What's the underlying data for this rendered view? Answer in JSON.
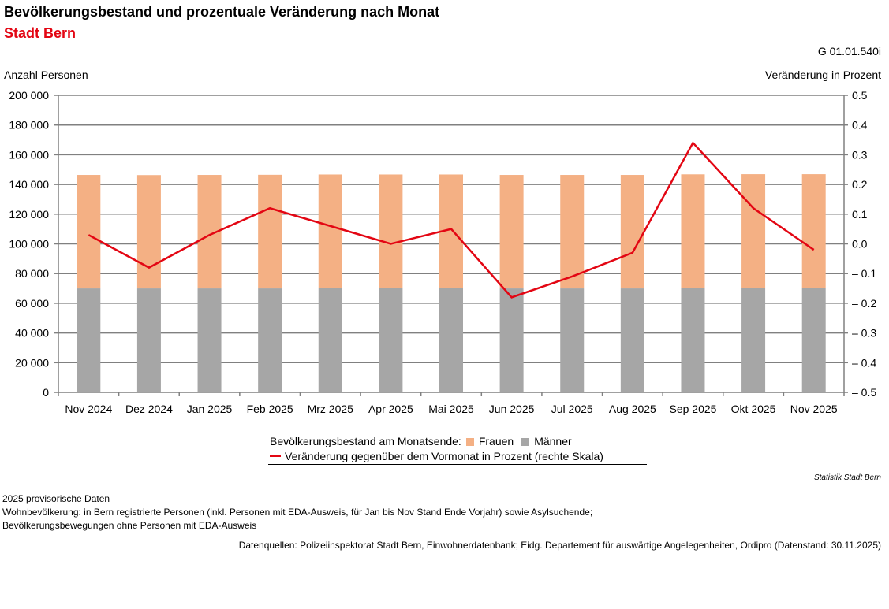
{
  "header": {
    "title": "Bevölkerungsbestand und prozentuale Veränderung nach Monat",
    "subtitle": "Stadt Bern",
    "code": "G 01.01.540i"
  },
  "chart_data": {
    "type": "bar",
    "title": "Bevölkerungsbestand und prozentuale Veränderung nach Monat",
    "ylabel": "Anzahl Personen",
    "y2label": "Veränderung in Prozent",
    "ylim": [
      0,
      200000
    ],
    "y2lim": [
      -0.5,
      0.5
    ],
    "yticks": [
      "0",
      "20 000",
      "40 000",
      "60 000",
      "80 000",
      "100 000",
      "120 000",
      "140 000",
      "160 000",
      "180 000",
      "200 000"
    ],
    "y2ticks": [
      "– 0.5",
      "– 0.4",
      "– 0.3",
      "– 0.2",
      "– 0.1",
      "0.0",
      "0.1",
      "0.2",
      "0.3",
      "0.4",
      "0.5"
    ],
    "categories": [
      "Nov 2024",
      "Dez 2024",
      "Jan 2025",
      "Feb 2025",
      "Mrz 2025",
      "Apr 2025",
      "Mai 2025",
      "Jun 2025",
      "Jul 2025",
      "Aug 2025",
      "Sep 2025",
      "Okt 2025",
      "Nov 2025"
    ],
    "series": [
      {
        "name": "Männer",
        "type": "bar",
        "stack": "bestand",
        "color": "#a6a6a6",
        "values": [
          70000,
          70000,
          70000,
          70000,
          70100,
          70100,
          70100,
          70000,
          70000,
          70000,
          70100,
          70200,
          70200
        ]
      },
      {
        "name": "Frauen",
        "type": "bar",
        "stack": "bestand",
        "color": "#f4b084",
        "values": [
          76400,
          76300,
          76400,
          76500,
          76600,
          76600,
          76600,
          76400,
          76400,
          76400,
          76700,
          76700,
          76700
        ]
      },
      {
        "name": "Veränderung gegenüber dem Vormonat in Prozent (rechte Skala)",
        "type": "line",
        "axis": "right",
        "color": "#e30613",
        "values": [
          0.03,
          -0.08,
          0.03,
          0.12,
          0.06,
          0.0,
          0.05,
          -0.18,
          -0.11,
          -0.03,
          0.34,
          0.12,
          -0.02
        ]
      }
    ],
    "grid": true
  },
  "legend": {
    "prefix": "Bevölkerungsbestand am Monatsende:",
    "frauen": "Frauen",
    "maenner": "Männer",
    "line": "Veränderung gegenüber dem Vormonat in Prozent (rechte Skala)"
  },
  "credit": "Statistik Stadt Bern",
  "notes": [
    "2025 provisorische Daten",
    "Wohnbevölkerung: in Bern registrierte Personen (inkl. Personen mit EDA-Ausweis, für Jan bis Nov Stand Ende Vorjahr) sowie Asylsuchende;",
    "Bevölkerungsbewegungen ohne Personen mit EDA-Ausweis"
  ],
  "source": "Datenquellen: Polizeiinspektorat Stadt Bern, Einwohnerdatenbank; Eidg. Departement für auswärtige Angelegenheiten, Ordipro (Datenstand: 30.11.2025)"
}
